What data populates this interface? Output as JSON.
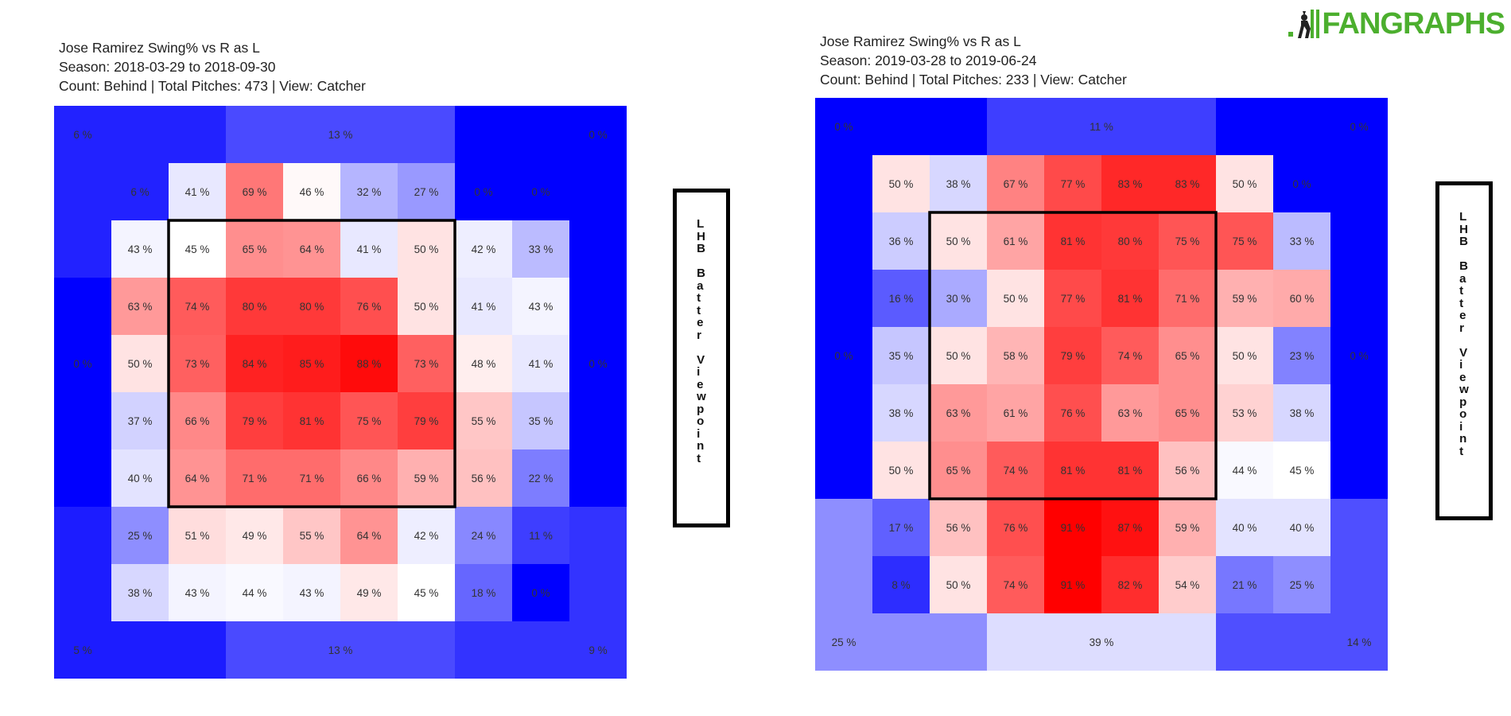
{
  "brand": {
    "name": "FANGRAPHS",
    "color": "#4caf2e",
    "icon": "batter-silhouette-icon"
  },
  "colors": {
    "min": "#0000ff",
    "mid": "#ffffff",
    "max": "#ff0000",
    "strike_zone": "#000000"
  },
  "charts": [
    {
      "title_lines": [
        "Jose Ramirez Swing% vs R as L",
        "Season: 2018-03-29 to 2018-09-30",
        "Count: Behind | Total Pitches: 473 | View: Catcher"
      ],
      "viewpoint_label": "LHB Batter Viewpoint"
    },
    {
      "title_lines": [
        "Jose Ramirez Swing% vs R as L",
        "Season: 2019-03-28 to 2019-06-24",
        "Count: Behind | Total Pitches: 233 | View: Catcher"
      ],
      "viewpoint_label": "LHB Batter Viewpoint"
    }
  ],
  "chart_data": [
    {
      "type": "heatmap",
      "title": "Jose Ramirez Swing% vs R as L",
      "subtitle": "Season: 2018-03-29 to 2018-09-30 | Count: Behind | Total Pitches: 473 | View: Catcher",
      "value_format": "percent",
      "outer_zones": {
        "top_left": 6,
        "top_center": 13,
        "top_right": 0,
        "middle_left": 0,
        "middle_right": 0,
        "bottom_left": 5,
        "bottom_center": 13,
        "bottom_right": 9
      },
      "inner_grid": [
        [
          6,
          41,
          69,
          46,
          32,
          27,
          0,
          0
        ],
        [
          43,
          45,
          65,
          64,
          41,
          50,
          42,
          33
        ],
        [
          63,
          74,
          80,
          80,
          76,
          50,
          41,
          43
        ],
        [
          50,
          73,
          84,
          85,
          88,
          73,
          48,
          41
        ],
        [
          37,
          66,
          79,
          81,
          75,
          79,
          55,
          35
        ],
        [
          40,
          64,
          71,
          71,
          66,
          59,
          56,
          22
        ],
        [
          25,
          51,
          49,
          55,
          64,
          42,
          24,
          11
        ],
        [
          38,
          43,
          44,
          43,
          49,
          45,
          18,
          0
        ]
      ],
      "strike_zone": {
        "rows": [
          1,
          6
        ],
        "cols": [
          1,
          6
        ]
      }
    },
    {
      "type": "heatmap",
      "title": "Jose Ramirez Swing% vs R as L",
      "subtitle": "Season: 2019-03-28 to 2019-06-24 | Count: Behind | Total Pitches: 233 | View: Catcher",
      "value_format": "percent",
      "outer_zones": {
        "top_left": 0,
        "top_center": 11,
        "top_right": 0,
        "middle_left": 0,
        "middle_right": 0,
        "bottom_left": 25,
        "bottom_center": 39,
        "bottom_right": 14
      },
      "inner_grid": [
        [
          50,
          38,
          67,
          77,
          83,
          83,
          50,
          0
        ],
        [
          36,
          50,
          61,
          81,
          80,
          75,
          75,
          33
        ],
        [
          16,
          30,
          50,
          77,
          81,
          71,
          59,
          60
        ],
        [
          35,
          50,
          58,
          79,
          74,
          65,
          50,
          23
        ],
        [
          38,
          63,
          61,
          76,
          63,
          65,
          53,
          38
        ],
        [
          50,
          65,
          74,
          81,
          81,
          56,
          44,
          45
        ],
        [
          17,
          56,
          76,
          91,
          87,
          59,
          40,
          40
        ],
        [
          8,
          50,
          74,
          91,
          82,
          54,
          21,
          25
        ]
      ],
      "strike_zone": {
        "rows": [
          1,
          6
        ],
        "cols": [
          1,
          6
        ]
      }
    }
  ]
}
